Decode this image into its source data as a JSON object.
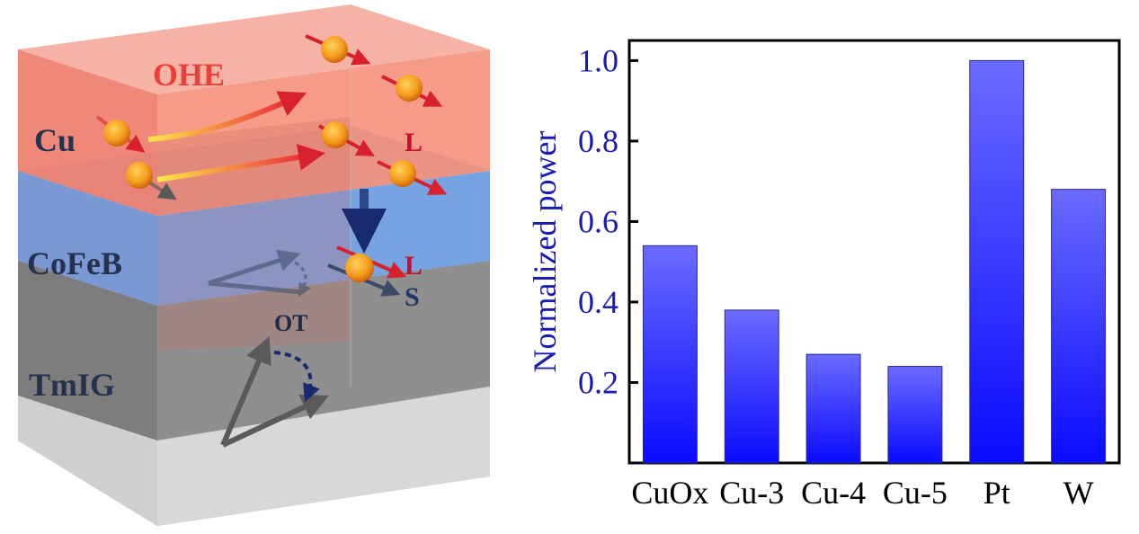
{
  "diagram": {
    "layers": {
      "cu": "Cu",
      "cofeb": "CoFeB",
      "tmig": "TmIG"
    },
    "labels": {
      "ohe": "OHE",
      "l_top": "L",
      "l_mid": "L",
      "s": "S",
      "ot": "OT"
    },
    "colors": {
      "cu_layer": "#f0786a",
      "cofeb_layer": "#6a9be0",
      "tmig_layer": "#8c8c8c",
      "ohe_text": "#e8413a",
      "l_text": "#c8102e",
      "s_text": "#1f3864",
      "layer_text": "#24324d"
    }
  },
  "chart_data": {
    "type": "bar",
    "categories": [
      "CuOx",
      "Cu-3",
      "Cu-4",
      "Cu-5",
      "Pt",
      "W"
    ],
    "values": [
      0.54,
      0.38,
      0.27,
      0.24,
      1.0,
      0.68
    ],
    "title": "",
    "xlabel": "",
    "ylabel": "Normalized power",
    "ylim": [
      0.0,
      1.05
    ],
    "yticks": [
      "0.2",
      "0.4",
      "0.6",
      "0.8",
      "1.0"
    ],
    "ytick_values": [
      0.2,
      0.4,
      0.6,
      0.8,
      1.0
    ],
    "colors": {
      "bar_top": "#6b6bff",
      "bar_bottom": "#0a0aff",
      "axis_text": "#1a1ab4"
    }
  }
}
